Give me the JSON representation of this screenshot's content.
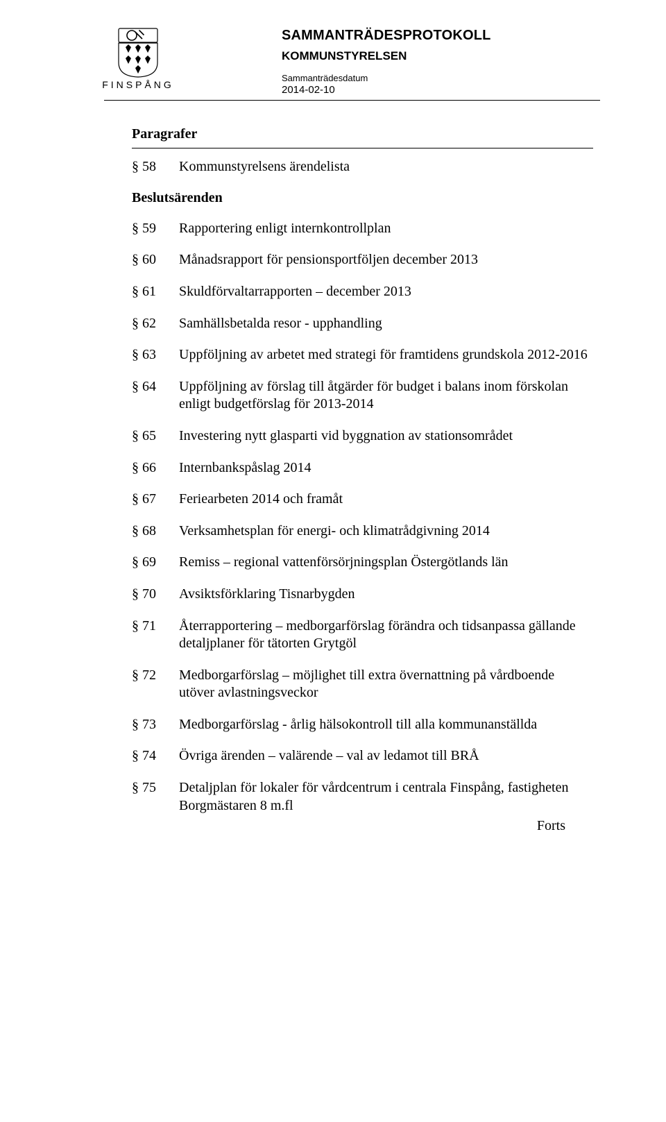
{
  "header": {
    "logo_text": "FINSPÅNG",
    "doc_type": "SAMMANTRÄDESPROTOKOLL",
    "committee": "KOMMUNSTYRELSEN",
    "date_label": "Sammanträdesdatum",
    "date": "2014-02-10"
  },
  "section_title": "Paragrafer",
  "first_item": {
    "num": "§ 58",
    "desc": "Kommunstyrelsens ärendelista"
  },
  "subheading": "Beslutsärenden",
  "items": [
    {
      "num": "§ 59",
      "desc": "Rapportering enligt internkontrollplan"
    },
    {
      "num": "§ 60",
      "desc": "Månadsrapport för pensionsportföljen december 2013"
    },
    {
      "num": "§ 61",
      "desc": "Skuldförvaltarrapporten – december 2013"
    },
    {
      "num": "§ 62",
      "desc": "Samhällsbetalda resor - upphandling"
    },
    {
      "num": "§ 63",
      "desc": "Uppföljning av arbetet med strategi för framtidens grundskola 2012-2016"
    },
    {
      "num": "§ 64",
      "desc": "Uppföljning av förslag till åtgärder för budget i balans inom förskolan enligt budgetförslag för 2013-2014"
    },
    {
      "num": "§ 65",
      "desc": "Investering nytt glasparti vid byggnation av stationsområdet"
    },
    {
      "num": "§ 66",
      "desc": "Internbankspåslag 2014"
    },
    {
      "num": "§ 67",
      "desc": "Feriearbeten 2014 och framåt"
    },
    {
      "num": "§ 68",
      "desc": "Verksamhetsplan för energi- och klimatrådgivning 2014"
    },
    {
      "num": "§ 69",
      "desc": "Remiss – regional vattenförsörjningsplan Östergötlands län"
    },
    {
      "num": "§ 70",
      "desc": "Avsiktsförklaring Tisnarbygden"
    },
    {
      "num": "§ 71",
      "desc": "Återrapportering – medborgarförslag förändra och tidsanpassa gällande detaljplaner för tätorten Grytgöl"
    },
    {
      "num": "§ 72",
      "desc": "Medborgarförslag – möjlighet till extra övernattning på vårdboende utöver avlastningsveckor"
    },
    {
      "num": "§ 73",
      "desc": "Medborgarförslag - årlig hälsokontroll till alla kommunanställda"
    },
    {
      "num": "§ 74",
      "desc": "Övriga ärenden – valärende – val av ledamot till BRÅ"
    },
    {
      "num": "§ 75",
      "desc": "Detaljplan för lokaler för vårdcentrum i centrala Finspång, fastigheten Borgmästaren 8 m.fl"
    }
  ],
  "forts": "Forts",
  "colors": {
    "text": "#000000",
    "background": "#ffffff",
    "rule": "#000000"
  },
  "typography": {
    "body_font": "Times New Roman",
    "header_font": "Arial",
    "body_size_pt": 15,
    "doc_type_size_pt": 15,
    "committee_size_pt": 13
  }
}
